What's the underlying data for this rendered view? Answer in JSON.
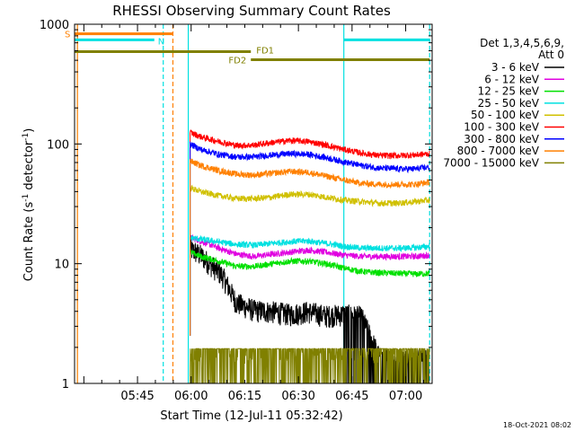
{
  "chart_data": {
    "type": "line",
    "title": "RHESSI Observing Summary Count Rates",
    "xlabel": "Start Time (12-Jul-11 05:32:42)",
    "ylabel_main": "Count Rate (s",
    "ylabel_sup1": "-1",
    "ylabel_mid": " detector",
    "ylabel_sup2": "-1",
    "ylabel_end": ")",
    "y_scale": "log",
    "ylim": [
      1,
      1000
    ],
    "xlim_minutes": [
      -5.3,
      94.7
    ],
    "x_ticks": [
      {
        "label": "05:45",
        "minute": 12.3
      },
      {
        "label": "06:00",
        "minute": 27.3
      },
      {
        "label": "06:15",
        "minute": 42.3
      },
      {
        "label": "06:30",
        "minute": 57.3
      },
      {
        "label": "06:45",
        "minute": 72.3
      },
      {
        "label": "07:00",
        "minute": 87.3
      }
    ],
    "y_ticks": [
      {
        "label": "1",
        "value": 1
      },
      {
        "label": "10",
        "value": 10
      },
      {
        "label": "100",
        "value": 100
      },
      {
        "label": "1000",
        "value": 1000
      }
    ],
    "legend": {
      "position": "right",
      "header1": "Det 1,3,4,5,6,9,",
      "header2": "Att 0"
    },
    "series": [
      {
        "name": "3 - 6 keV",
        "color": "#000000",
        "x": [
          27.0,
          30,
          33,
          36,
          40,
          45,
          50,
          55,
          60,
          65,
          70,
          75,
          80,
          85,
          90,
          94.0
        ],
        "y": [
          13,
          11.5,
          9.5,
          7.8,
          4.6,
          4.0,
          3.9,
          3.7,
          3.9,
          3.6,
          3.7,
          3.5,
          1.6,
          1.5,
          1.6,
          1.5
        ]
      },
      {
        "name": "6 - 12 keV",
        "color": "#e000e0",
        "x": [
          27.0,
          30,
          35,
          40,
          45,
          50,
          55,
          60,
          65,
          70,
          75,
          80,
          85,
          90,
          94.0
        ],
        "y": [
          16.5,
          15.5,
          13.5,
          12.0,
          11.5,
          12.0,
          12.5,
          13.0,
          12.5,
          11.8,
          11.5,
          11.5,
          11.5,
          11.5,
          11.8
        ]
      },
      {
        "name": "12 - 25 keV",
        "color": "#00e000",
        "x": [
          27.0,
          30,
          35,
          40,
          45,
          50,
          55,
          60,
          65,
          70,
          75,
          80,
          85,
          90,
          94.0
        ],
        "y": [
          12.5,
          11.5,
          10.5,
          9.5,
          9.5,
          10.0,
          10.5,
          10.5,
          10.0,
          9.2,
          8.6,
          8.4,
          8.3,
          8.2,
          8.3
        ]
      },
      {
        "name": "25 - 50 keV",
        "color": "#00e0e0",
        "x": [
          27.0,
          30,
          35,
          40,
          45,
          50,
          55,
          60,
          65,
          70,
          75,
          80,
          85,
          90,
          94.0
        ],
        "y": [
          16.5,
          16.0,
          15.2,
          14.5,
          14.3,
          14.8,
          15.3,
          15.5,
          14.8,
          14.0,
          13.5,
          13.5,
          13.5,
          13.6,
          14.0
        ]
      },
      {
        "name": "50 - 100 keV",
        "color": "#d0c000",
        "x": [
          27.0,
          30,
          35,
          40,
          45,
          50,
          55,
          60,
          65,
          70,
          75,
          80,
          85,
          90,
          94.0
        ],
        "y": [
          43,
          40,
          37,
          35,
          35,
          36,
          38,
          38,
          36,
          34,
          33,
          32,
          32,
          33,
          34
        ]
      },
      {
        "name": "100 - 300 keV",
        "color": "#ff0000",
        "x": [
          27.0,
          30,
          35,
          40,
          45,
          50,
          55,
          60,
          65,
          70,
          75,
          80,
          85,
          90,
          94.0
        ],
        "y": [
          125,
          115,
          105,
          97,
          98,
          103,
          107,
          105,
          98,
          90,
          84,
          80,
          80,
          81,
          83
        ]
      },
      {
        "name": "300 - 800 keV",
        "color": "#0000ff",
        "x": [
          27.0,
          30,
          35,
          40,
          45,
          50,
          55,
          60,
          65,
          70,
          75,
          80,
          85,
          90,
          94.0
        ],
        "y": [
          100,
          90,
          82,
          78,
          78,
          81,
          83,
          82,
          77,
          71,
          66,
          63,
          62,
          62,
          64
        ]
      },
      {
        "name": "800 - 7000 keV",
        "color": "#ff8000",
        "x": [
          27.0,
          30,
          35,
          40,
          45,
          50,
          55,
          60,
          65,
          70,
          75,
          80,
          85,
          90,
          94.0
        ],
        "y": [
          72,
          66,
          60,
          56,
          55,
          57,
          59,
          58,
          54,
          50,
          47,
          46,
          46,
          46,
          48
        ]
      },
      {
        "name": "7000 - 15000 keV",
        "color": "#808000",
        "x": [
          27.0,
          28,
          40,
          41,
          50,
          55,
          60,
          65,
          70,
          75,
          80,
          94.0
        ],
        "y": [
          1.9,
          1.9,
          1.9,
          1.9,
          1.9,
          1.9,
          1.9,
          1.9,
          1.9,
          1.9,
          1.9,
          1.9
        ]
      }
    ],
    "state_bars": [
      {
        "label": "S",
        "color": "#ff8000",
        "x1": -5.3,
        "x2": 22.2,
        "level": 832
      },
      {
        "label": "N",
        "color": "#00e0e0",
        "x1": -5.3,
        "x2": 17.0,
        "level": 740
      },
      {
        "label": "N",
        "color": "#00e0e0",
        "x1": 70.0,
        "x2": 94.0,
        "level": 740
      },
      {
        "label": "FD1",
        "color": "#808000",
        "x1": -5.3,
        "x2": 44.0,
        "level": 590
      },
      {
        "label": "FD2",
        "color": "#808000",
        "x1": 44.0,
        "x2": 94.0,
        "level": 505
      }
    ],
    "vlines": [
      {
        "minute": -4.5,
        "color": "#ff8000",
        "dashed": false
      },
      {
        "minute": 19.5,
        "color": "#00e0e0",
        "dashed": true
      },
      {
        "minute": 22.2,
        "color": "#ff8000",
        "dashed": true
      },
      {
        "minute": 26.5,
        "color": "#00e0e0",
        "dashed": false
      },
      {
        "minute": 70.0,
        "color": "#00e0e0",
        "dashed": false
      },
      {
        "minute": 94.0,
        "color": "#00e0e0",
        "dashed": true
      }
    ]
  },
  "footer": {
    "timestamp": "18-Oct-2021 08:02"
  }
}
